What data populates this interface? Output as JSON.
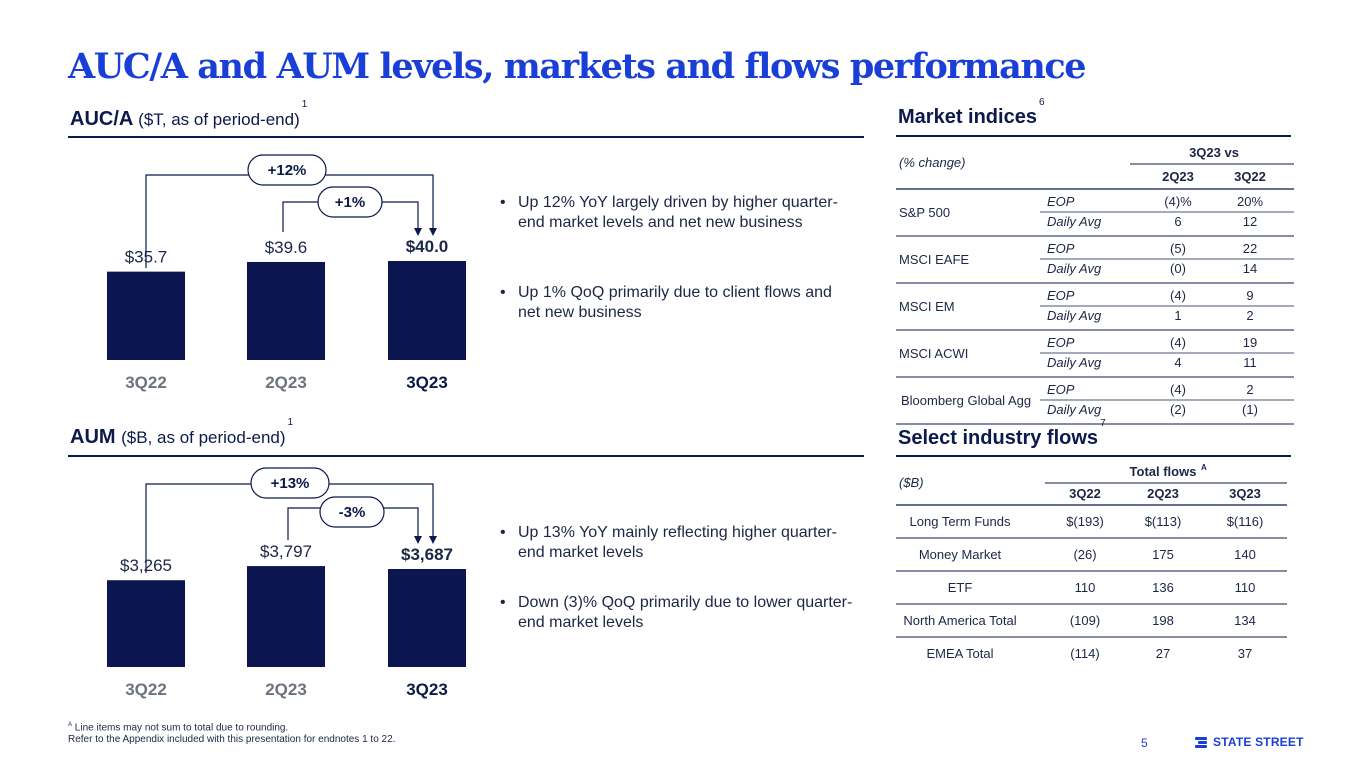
{
  "title": "AUC/A and AUM levels, markets and flows performance",
  "auca": {
    "title": "AUC/A",
    "subtitle": "($T, as of period-end)",
    "sup": "1",
    "yoy_label": "+12%",
    "qoq_label": "+1%",
    "bullets": [
      "Up 12% YoY largely driven by higher quarter-end market levels and net new business",
      "Up 1% QoQ primarily due to client flows and net new business"
    ]
  },
  "aum": {
    "title": "AUM",
    "subtitle": "($B, as of period-end)",
    "sup": "1",
    "yoy_label": "+13%",
    "qoq_label": "-3%",
    "bullets": [
      "Up 13% YoY mainly reflecting higher quarter-end market levels",
      "Down (3)% QoQ primarily due to lower quarter-end market levels"
    ]
  },
  "chart_data": [
    {
      "type": "bar",
      "categories": [
        "3Q22",
        "2Q23",
        "3Q23"
      ],
      "values": [
        35.7,
        39.6,
        40.0
      ],
      "labels": [
        "$35.7",
        "$39.6",
        "$40.0"
      ],
      "highlight_index": 2,
      "color": "#0b1650"
    },
    {
      "type": "bar",
      "categories": [
        "3Q22",
        "2Q23",
        "3Q23"
      ],
      "values": [
        3265,
        3797,
        3687
      ],
      "labels": [
        "$3,265",
        "$3,797",
        "$3,687"
      ],
      "highlight_index": 2,
      "color": "#0b1650"
    },
    {
      "type": "table",
      "title": "Market indices",
      "sup": "6",
      "unit_label": "(% change)",
      "group_header": "3Q23 vs",
      "columns": [
        "2Q23",
        "3Q22"
      ],
      "rows": [
        {
          "name": "S&P 500",
          "eop": [
            "(4)%",
            "20%"
          ],
          "avg": [
            "6",
            "12"
          ]
        },
        {
          "name": "MSCI EAFE",
          "eop": [
            "(5)",
            "22"
          ],
          "avg": [
            "(0)",
            "14"
          ]
        },
        {
          "name": "MSCI EM",
          "eop": [
            "(4)",
            "9"
          ],
          "avg": [
            "1",
            "2"
          ]
        },
        {
          "name": "MSCI ACWI",
          "eop": [
            "(4)",
            "19"
          ],
          "avg": [
            "4",
            "11"
          ]
        },
        {
          "name": "Bloomberg Global Agg",
          "eop": [
            "(4)",
            "2"
          ],
          "avg": [
            "(2)",
            "(1)"
          ]
        }
      ],
      "eop_label": "EOP",
      "avg_label": "Daily Avg"
    },
    {
      "type": "table",
      "title": "Select industry flows",
      "sup": "7",
      "unit_label": "($B)",
      "group_header": "Total flows",
      "group_sup": "A",
      "columns": [
        "3Q22",
        "2Q23",
        "3Q23"
      ],
      "rows": [
        {
          "name": "Long Term Funds",
          "values": [
            "$(193)",
            "$(113)",
            "$(116)"
          ]
        },
        {
          "name": "Money Market",
          "values": [
            "(26)",
            "175",
            "140"
          ]
        },
        {
          "name": "ETF",
          "values": [
            "110",
            "136",
            "110"
          ]
        },
        {
          "name": "North America Total",
          "values": [
            "(109)",
            "198",
            "134"
          ]
        },
        {
          "name": "EMEA Total",
          "values": [
            "(114)",
            "27",
            "37"
          ]
        }
      ]
    }
  ],
  "footnotes": {
    "line1_sup": "A",
    "line1": "Line items may not sum to total due to rounding.",
    "line2": "Refer to the Appendix included with this presentation for endnotes 1 to 22."
  },
  "page_number": "5",
  "brand": "STATE STREET",
  "colors": {
    "title_blue": "#1a3fd6",
    "navy": "#0b1a4a",
    "bar": "#0b1650",
    "muted_axis": "#6b7280"
  }
}
